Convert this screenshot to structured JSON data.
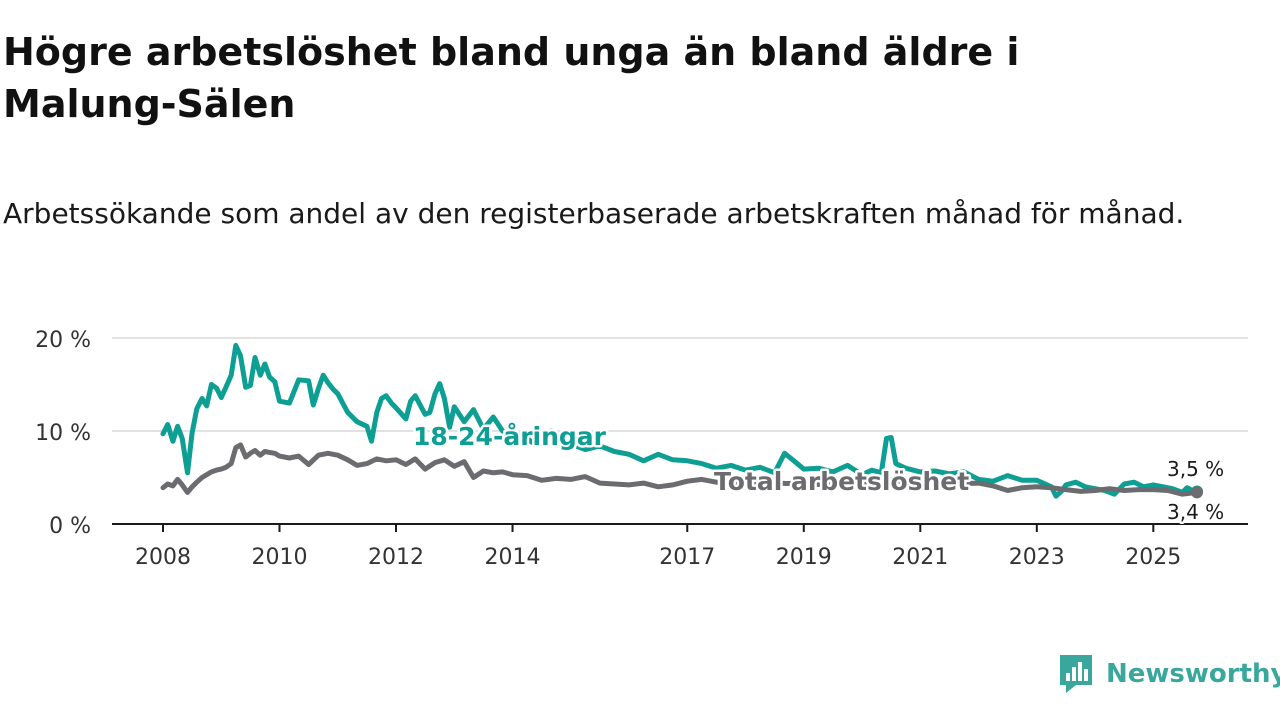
{
  "title": "Högre arbetslöshet bland unga än bland äldre i Malung-Sälen",
  "subtitle": "Arbetssökande som andel av den registerbaserade arbetskraften månad för månad.",
  "brand": {
    "name": "Newsworthy"
  },
  "colors": {
    "youth": "#0e9f94",
    "total": "#6b6b70",
    "grid": "#d9d9d9",
    "axis": "#1a1a1a"
  },
  "chart_data": {
    "type": "line",
    "title": "Högre arbetslöshet bland unga än bland äldre i Malung-Sälen",
    "xlabel": "",
    "ylabel": "",
    "xlim": [
      2007.5,
      2026.0
    ],
    "ylim": [
      0,
      20
    ],
    "y_ticks": [
      0,
      10,
      20
    ],
    "y_tick_labels": [
      "0 %",
      "10 %",
      "20 %"
    ],
    "x_ticks": [
      2008,
      2010,
      2012,
      2014,
      2017,
      2019,
      2021,
      2023,
      2025
    ],
    "x_tick_labels": [
      "2008",
      "2010",
      "2012",
      "2014",
      "2017",
      "2019",
      "2021",
      "2023",
      "2025"
    ],
    "grid": true,
    "series": [
      {
        "name": "18-24-åringar",
        "x": [
          2008.0,
          2008.08,
          2008.17,
          2008.25,
          2008.33,
          2008.42,
          2008.5,
          2008.58,
          2008.67,
          2008.75,
          2008.83,
          2008.92,
          2009.0,
          2009.08,
          2009.17,
          2009.25,
          2009.33,
          2009.42,
          2009.5,
          2009.58,
          2009.67,
          2009.75,
          2009.83,
          2009.92,
          2010.0,
          2010.17,
          2010.33,
          2010.5,
          2010.58,
          2010.67,
          2010.75,
          2010.83,
          2010.92,
          2011.0,
          2011.17,
          2011.33,
          2011.5,
          2011.58,
          2011.67,
          2011.75,
          2011.83,
          2011.92,
          2012.0,
          2012.17,
          2012.25,
          2012.33,
          2012.5,
          2012.58,
          2012.67,
          2012.75,
          2012.83,
          2012.92,
          2013.0,
          2013.17,
          2013.33,
          2013.5,
          2013.67,
          2013.83,
          2014.0,
          2014.17,
          2014.33,
          2014.5,
          2014.67,
          2014.83,
          2015.0,
          2015.25,
          2015.5,
          2015.75,
          2016.0,
          2016.25,
          2016.5,
          2016.75,
          2017.0,
          2017.25,
          2017.5,
          2017.75,
          2018.0,
          2018.25,
          2018.5,
          2018.67,
          2018.83,
          2019.0,
          2019.25,
          2019.5,
          2019.75,
          2020.0,
          2020.17,
          2020.33,
          2020.42,
          2020.5,
          2020.58,
          2020.75,
          2021.0,
          2021.25,
          2021.5,
          2021.75,
          2022.0,
          2022.25,
          2022.5,
          2022.75,
          2023.0,
          2023.25,
          2023.33,
          2023.42,
          2023.5,
          2023.67,
          2023.83,
          2024.0,
          2024.17,
          2024.33,
          2024.5,
          2024.67,
          2024.83,
          2025.0,
          2025.17,
          2025.33,
          2025.5,
          2025.58,
          2025.67,
          2025.75
        ],
        "values": [
          9.7,
          10.7,
          8.9,
          10.5,
          9.2,
          5.5,
          9.8,
          12.4,
          13.5,
          12.7,
          15.0,
          14.6,
          13.6,
          14.7,
          16.0,
          19.2,
          18.1,
          14.7,
          14.9,
          17.9,
          16.0,
          17.2,
          15.8,
          15.3,
          13.2,
          13.0,
          15.5,
          15.4,
          12.8,
          14.6,
          16.0,
          15.2,
          14.5,
          14.0,
          12.0,
          11.0,
          10.5,
          8.9,
          12.0,
          13.5,
          13.8,
          13.0,
          12.5,
          11.3,
          13.2,
          13.8,
          11.8,
          12.0,
          14.0,
          15.1,
          13.5,
          10.4,
          12.6,
          11.0,
          12.3,
          10.2,
          11.5,
          10.0,
          9.5,
          9.7,
          8.8,
          9.6,
          10.0,
          9.0,
          8.6,
          8.0,
          8.4,
          7.8,
          7.5,
          6.8,
          7.5,
          6.9,
          6.8,
          6.5,
          6.0,
          6.3,
          5.8,
          6.1,
          5.5,
          7.6,
          6.8,
          5.9,
          6.0,
          5.6,
          6.3,
          5.3,
          5.8,
          5.5,
          9.2,
          9.3,
          6.5,
          6.0,
          5.6,
          5.7,
          5.4,
          5.6,
          4.8,
          4.6,
          5.2,
          4.7,
          4.7,
          4.0,
          3.0,
          3.5,
          4.2,
          4.5,
          4.0,
          3.8,
          3.6,
          3.2,
          4.3,
          4.5,
          4.0,
          4.2,
          4.0,
          3.8,
          3.4,
          3.9,
          3.6,
          3.5
        ]
      },
      {
        "name": "Total arbetslöshet",
        "x": [
          2008.0,
          2008.08,
          2008.17,
          2008.25,
          2008.33,
          2008.42,
          2008.5,
          2008.58,
          2008.67,
          2008.75,
          2008.83,
          2008.92,
          2009.0,
          2009.08,
          2009.17,
          2009.25,
          2009.33,
          2009.42,
          2009.5,
          2009.58,
          2009.67,
          2009.75,
          2009.83,
          2009.92,
          2010.0,
          2010.17,
          2010.33,
          2010.5,
          2010.67,
          2010.83,
          2011.0,
          2011.17,
          2011.33,
          2011.5,
          2011.67,
          2011.83,
          2012.0,
          2012.17,
          2012.33,
          2012.5,
          2012.67,
          2012.83,
          2013.0,
          2013.17,
          2013.33,
          2013.5,
          2013.67,
          2013.83,
          2014.0,
          2014.25,
          2014.5,
          2014.75,
          2015.0,
          2015.25,
          2015.5,
          2015.75,
          2016.0,
          2016.25,
          2016.5,
          2016.75,
          2017.0,
          2017.25,
          2017.5,
          2017.75,
          2018.0,
          2018.5,
          2019.0,
          2019.5,
          2020.0,
          2020.33,
          2020.5,
          2020.75,
          2021.0,
          2021.5,
          2022.0,
          2022.25,
          2022.5,
          2022.75,
          2023.0,
          2023.25,
          2023.5,
          2023.75,
          2024.0,
          2024.25,
          2024.5,
          2024.75,
          2025.0,
          2025.25,
          2025.5,
          2025.75
        ],
        "values": [
          3.9,
          4.3,
          4.1,
          4.8,
          4.2,
          3.4,
          4.0,
          4.5,
          5.0,
          5.3,
          5.6,
          5.8,
          5.9,
          6.1,
          6.5,
          8.2,
          8.5,
          7.2,
          7.6,
          7.9,
          7.4,
          7.8,
          7.7,
          7.6,
          7.3,
          7.1,
          7.3,
          6.4,
          7.4,
          7.6,
          7.4,
          6.9,
          6.3,
          6.5,
          7.0,
          6.8,
          6.9,
          6.4,
          7.0,
          5.9,
          6.6,
          6.9,
          6.2,
          6.7,
          5.0,
          5.7,
          5.5,
          5.6,
          5.3,
          5.2,
          4.7,
          4.9,
          4.8,
          5.1,
          4.4,
          4.3,
          4.2,
          4.4,
          4.0,
          4.2,
          4.6,
          4.8,
          4.5,
          4.6,
          4.3,
          4.4,
          4.3,
          4.2,
          4.4,
          4.3,
          4.8,
          4.4,
          4.2,
          4.3,
          4.4,
          4.1,
          3.6,
          3.9,
          4.0,
          3.9,
          3.7,
          3.5,
          3.6,
          3.8,
          3.6,
          3.7,
          3.7,
          3.6,
          3.2,
          3.4
        ]
      }
    ],
    "annotations": [
      {
        "text": "18-24-åringar",
        "series": "18-24-åringar"
      },
      {
        "text": "Total arbetslöshet",
        "series": "Total arbetslöshet"
      },
      {
        "text": "3,5 %",
        "series": "18-24-åringar"
      },
      {
        "text": "3,4 %",
        "series": "Total arbetslöshet"
      }
    ]
  }
}
